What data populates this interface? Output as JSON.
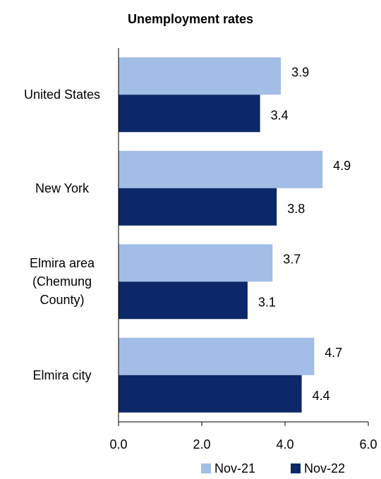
{
  "chart_data": {
    "type": "bar",
    "orientation": "horizontal",
    "title": "Unemployment rates",
    "categories": [
      "United States",
      "New York",
      "Elmira area (Chemung County)",
      "Elmira city"
    ],
    "series": [
      {
        "name": "Nov-21",
        "color": "#a2bde6",
        "values": [
          3.9,
          4.9,
          3.7,
          4.7
        ]
      },
      {
        "name": "Nov-22",
        "color": "#0c2868",
        "values": [
          3.4,
          3.8,
          3.1,
          4.4
        ]
      }
    ],
    "xlim": [
      0,
      6
    ],
    "xticks": [
      {
        "value": 0,
        "label": "0.0"
      },
      {
        "value": 2,
        "label": "2.0"
      },
      {
        "value": 4,
        "label": "4.0"
      },
      {
        "value": 6,
        "label": "6.0"
      }
    ],
    "legend": "bottom"
  }
}
